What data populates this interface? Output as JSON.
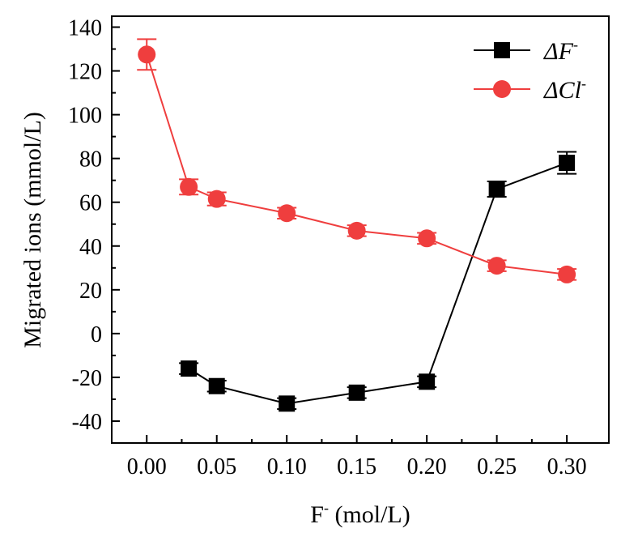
{
  "chart_data": {
    "type": "line",
    "xlabel_main": "F",
    "xlabel_sup": "-",
    "xlabel_rest": " (mol/L)",
    "ylabel": "Migrated ions (mmol/L)",
    "xlim": [
      -0.025,
      0.33
    ],
    "ylim": [
      -50,
      145
    ],
    "x_ticks": [
      0.0,
      0.05,
      0.1,
      0.15,
      0.2,
      0.25,
      0.3
    ],
    "x_tick_labels": [
      "0.00",
      "0.05",
      "0.10",
      "0.15",
      "0.20",
      "0.25",
      "0.30"
    ],
    "y_ticks": [
      -40,
      -20,
      0,
      20,
      40,
      60,
      80,
      100,
      120,
      140
    ],
    "y_tick_labels": [
      "-40",
      "-20",
      "0",
      "20",
      "40",
      "60",
      "80",
      "100",
      "120",
      "140"
    ],
    "series": [
      {
        "name": "ΔF-",
        "legend_main": "ΔF",
        "legend_sup": "-",
        "color": "#000000",
        "marker": "square",
        "x": [
          0.03,
          0.05,
          0.1,
          0.15,
          0.2,
          0.25,
          0.3
        ],
        "values": [
          -16,
          -24,
          -32,
          -27,
          -22,
          66,
          78
        ],
        "errors": [
          2.5,
          2.5,
          2.5,
          2.5,
          2.5,
          3.5,
          5
        ]
      },
      {
        "name": "ΔCl-",
        "legend_main": "ΔCl",
        "legend_sup": "-",
        "color": "#ef3e3e",
        "marker": "circle",
        "x": [
          0.0,
          0.03,
          0.05,
          0.1,
          0.15,
          0.2,
          0.25,
          0.3
        ],
        "values": [
          127.5,
          67,
          61.5,
          55,
          47,
          43.5,
          31,
          27
        ],
        "errors": [
          7,
          3.5,
          3,
          2.5,
          2.5,
          2.5,
          2.5,
          2.5
        ]
      }
    ],
    "legend_position": "top-right"
  }
}
